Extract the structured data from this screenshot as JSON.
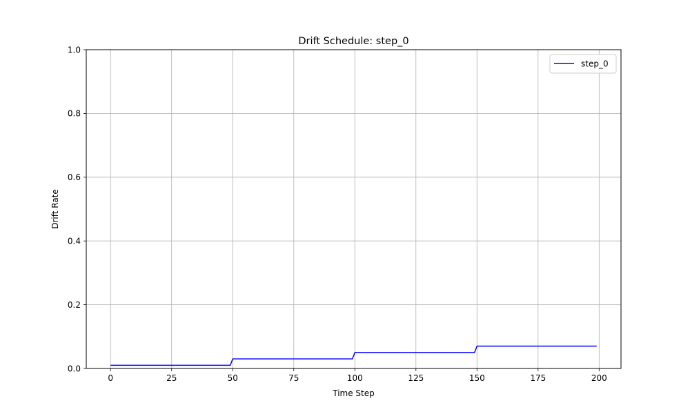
{
  "chart_data": {
    "type": "line",
    "title": "Drift Schedule: step_0",
    "xlabel": "Time Step",
    "ylabel": "Drift Rate",
    "xlim": [
      -9.95,
      208.95
    ],
    "ylim": [
      0,
      1
    ],
    "xticks": [
      0,
      25,
      50,
      75,
      100,
      125,
      150,
      175,
      200
    ],
    "xtick_labels": [
      "0",
      "25",
      "50",
      "75",
      "100",
      "125",
      "150",
      "175",
      "200"
    ],
    "yticks": [
      0,
      0.2,
      0.4,
      0.6,
      0.8,
      1.0
    ],
    "ytick_labels": [
      "0.0",
      "0.2",
      "0.4",
      "0.6",
      "0.8",
      "1.0"
    ],
    "grid": true,
    "legend_position": "top-right",
    "series": [
      {
        "name": "step_0",
        "color": "#0000ff",
        "x": [
          0,
          49,
          50,
          99,
          100,
          149,
          150,
          199
        ],
        "y": [
          0.01,
          0.01,
          0.03,
          0.03,
          0.05,
          0.05,
          0.07,
          0.07
        ]
      }
    ]
  }
}
